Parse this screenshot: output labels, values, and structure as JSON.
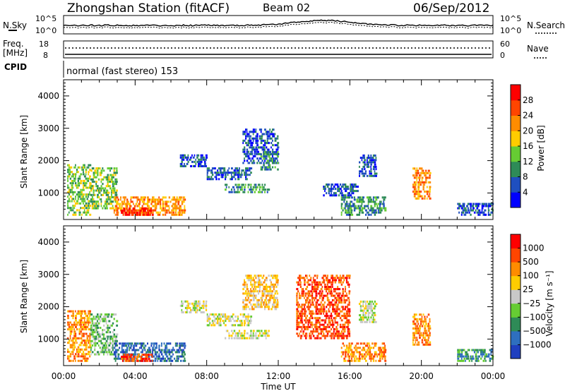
{
  "header": {
    "station_title": "Zhongshan Station (fitACF)",
    "beam_label": "Beam 02",
    "date_label": "06/Sep/2012"
  },
  "noise_panel": {
    "left_label": "N.Sky",
    "right_label": "N.Search",
    "right_label_2": "Nave",
    "left_ticks": [
      "10^5",
      "10^0"
    ],
    "right_ticks": [
      "10^5",
      "10^0"
    ]
  },
  "freq_panel": {
    "left_label_1": "Freq.",
    "left_label_2": "[MHz]",
    "left_ticks": [
      "18",
      "8"
    ],
    "right_ticks": [
      "60",
      "0"
    ],
    "cpid_label": "CPID",
    "mode_text": "normal (fast stereo) 153"
  },
  "power_panel": {
    "ylabel": "Slant Range [km]",
    "yticks": [
      "4000",
      "3000",
      "2000",
      "1000"
    ],
    "colorbar_label": "Power [dB]",
    "colorbar_ticks": [
      "28",
      "24",
      "20",
      "16",
      "12",
      "8",
      "4"
    ],
    "colors": [
      "#0000ff",
      "#1f4fbf",
      "#2e8b57",
      "#66cc33",
      "#ffcc00",
      "#ff8c00",
      "#ff4500",
      "#ff0000"
    ]
  },
  "velocity_panel": {
    "ylabel": "Slant Range [km]",
    "yticks": [
      "4000",
      "3000",
      "2000",
      "1000"
    ],
    "colorbar_label": "Velocity [m s⁻¹]",
    "colorbar_ticks": [
      "1000",
      "500",
      "100",
      "25",
      "−25",
      "−100",
      "−500",
      "−1000"
    ],
    "colors": [
      "#1f3fbf",
      "#2e6fbf",
      "#2e8b57",
      "#66cc33",
      "#c8c8c8",
      "#ffcc00",
      "#ff8c00",
      "#ff4500",
      "#ff0000"
    ]
  },
  "xaxis": {
    "ticks": [
      "00:00",
      "04:00",
      "08:00",
      "12:00",
      "16:00",
      "20:00",
      "00:00"
    ],
    "label": "Time UT"
  },
  "chart_data": {
    "type": "heatmap",
    "x_range_hours": [
      0,
      24
    ],
    "y_range_km": [
      180,
      4500
    ],
    "power_blobs": [
      {
        "t0": 0.2,
        "t1": 1.5,
        "r0": 300,
        "r1": 1900,
        "level": 3
      },
      {
        "t0": 1.5,
        "t1": 3.0,
        "r0": 500,
        "r1": 1800,
        "level": 3
      },
      {
        "t0": 2.8,
        "t1": 6.8,
        "r0": 300,
        "r1": 900,
        "level": 5
      },
      {
        "t0": 3.2,
        "t1": 5.0,
        "r0": 300,
        "r1": 550,
        "level": 7
      },
      {
        "t0": 6.5,
        "t1": 8.0,
        "r0": 1800,
        "r1": 2200,
        "level": 1
      },
      {
        "t0": 8.0,
        "t1": 10.5,
        "r0": 1400,
        "r1": 1800,
        "level": 1
      },
      {
        "t0": 9.0,
        "t1": 11.5,
        "r0": 1000,
        "r1": 1300,
        "level": 2
      },
      {
        "t0": 10.0,
        "t1": 12.0,
        "r0": 1900,
        "r1": 3000,
        "level": 1
      },
      {
        "t0": 11.0,
        "t1": 12.0,
        "r0": 1700,
        "r1": 2300,
        "level": 2
      },
      {
        "t0": 14.5,
        "t1": 16.5,
        "r0": 900,
        "r1": 1300,
        "level": 1
      },
      {
        "t0": 15.5,
        "t1": 18.0,
        "r0": 300,
        "r1": 900,
        "level": 2
      },
      {
        "t0": 16.5,
        "t1": 17.5,
        "r0": 1500,
        "r1": 2200,
        "level": 1
      },
      {
        "t0": 19.5,
        "t1": 20.5,
        "r0": 800,
        "r1": 1800,
        "level": 5
      },
      {
        "t0": 22.0,
        "t1": 24.0,
        "r0": 300,
        "r1": 700,
        "level": 1
      }
    ],
    "velocity_blobs": [
      {
        "t0": 0.2,
        "t1": 1.5,
        "r0": 300,
        "r1": 1900,
        "level": 6
      },
      {
        "t0": 1.5,
        "t1": 3.0,
        "r0": 500,
        "r1": 1800,
        "level": 3
      },
      {
        "t0": 2.8,
        "t1": 6.8,
        "r0": 300,
        "r1": 900,
        "level": 1
      },
      {
        "t0": 3.2,
        "t1": 5.0,
        "r0": 300,
        "r1": 550,
        "level": 7
      },
      {
        "t0": 6.5,
        "t1": 8.0,
        "r0": 1800,
        "r1": 2200,
        "level": 4
      },
      {
        "t0": 8.0,
        "t1": 10.5,
        "r0": 1400,
        "r1": 1800,
        "level": 4
      },
      {
        "t0": 9.0,
        "t1": 11.5,
        "r0": 1000,
        "r1": 1300,
        "level": 4
      },
      {
        "t0": 10.0,
        "t1": 12.0,
        "r0": 1900,
        "r1": 3000,
        "level": 5
      },
      {
        "t0": 13.0,
        "t1": 16.0,
        "r0": 1000,
        "r1": 3000,
        "level": 7
      },
      {
        "t0": 15.5,
        "t1": 18.0,
        "r0": 300,
        "r1": 900,
        "level": 6
      },
      {
        "t0": 16.5,
        "t1": 17.5,
        "r0": 1500,
        "r1": 2200,
        "level": 4
      },
      {
        "t0": 19.5,
        "t1": 20.5,
        "r0": 800,
        "r1": 1800,
        "level": 6
      },
      {
        "t0": 22.0,
        "t1": 24.0,
        "r0": 300,
        "r1": 700,
        "level": 2
      }
    ]
  }
}
